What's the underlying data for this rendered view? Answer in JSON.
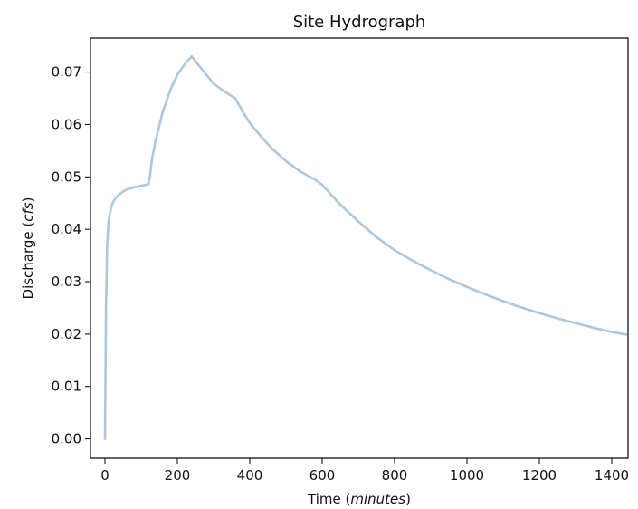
{
  "chart_data": {
    "type": "line",
    "title": "Site Hydrograph",
    "xlabel": {
      "prefix": "Time (",
      "italic": "minutes",
      "suffix": ")"
    },
    "ylabel": {
      "prefix": "Discharge (",
      "italic": "cfs",
      "suffix": ")"
    },
    "xlim": [
      -40,
      1445
    ],
    "ylim": [
      -0.0037,
      0.0765
    ],
    "xticks": [
      0,
      200,
      400,
      600,
      800,
      1000,
      1200,
      1400
    ],
    "xtick_labels": [
      "0",
      "200",
      "400",
      "600",
      "800",
      "1000",
      "1200",
      "1400"
    ],
    "yticks": [
      0.0,
      0.01,
      0.02,
      0.03,
      0.04,
      0.05,
      0.06,
      0.07
    ],
    "ytick_labels": [
      "0.00",
      "0.01",
      "0.02",
      "0.03",
      "0.04",
      "0.05",
      "0.06",
      "0.07"
    ],
    "grid": false,
    "line_color": "#aac8e2",
    "series": [
      {
        "x": [
          0,
          3,
          6,
          10,
          15,
          20,
          25,
          30,
          40,
          50,
          60,
          80,
          100,
          120,
          125,
          130,
          140,
          160,
          180,
          200,
          220,
          240,
          260,
          280,
          300,
          330,
          360,
          380,
          400,
          430,
          460,
          500,
          540,
          580,
          600,
          650,
          700,
          750,
          800,
          850,
          900,
          950,
          1000,
          1050,
          1100,
          1150,
          1200,
          1250,
          1300,
          1350,
          1400,
          1440
        ],
        "y": [
          0.0,
          0.026,
          0.037,
          0.0415,
          0.0435,
          0.0448,
          0.0455,
          0.046,
          0.0467,
          0.0472,
          0.0476,
          0.048,
          0.0483,
          0.0486,
          0.0505,
          0.0535,
          0.057,
          0.0625,
          0.0665,
          0.0695,
          0.0715,
          0.073,
          0.0712,
          0.0695,
          0.0678,
          0.0663,
          0.065,
          0.0625,
          0.0603,
          0.0578,
          0.0555,
          0.053,
          0.051,
          0.0495,
          0.0485,
          0.0447,
          0.0415,
          0.0385,
          0.036,
          0.034,
          0.0322,
          0.0305,
          0.029,
          0.0276,
          0.0263,
          0.0251,
          0.024,
          0.023,
          0.0221,
          0.0212,
          0.0204,
          0.0199
        ]
      }
    ]
  }
}
